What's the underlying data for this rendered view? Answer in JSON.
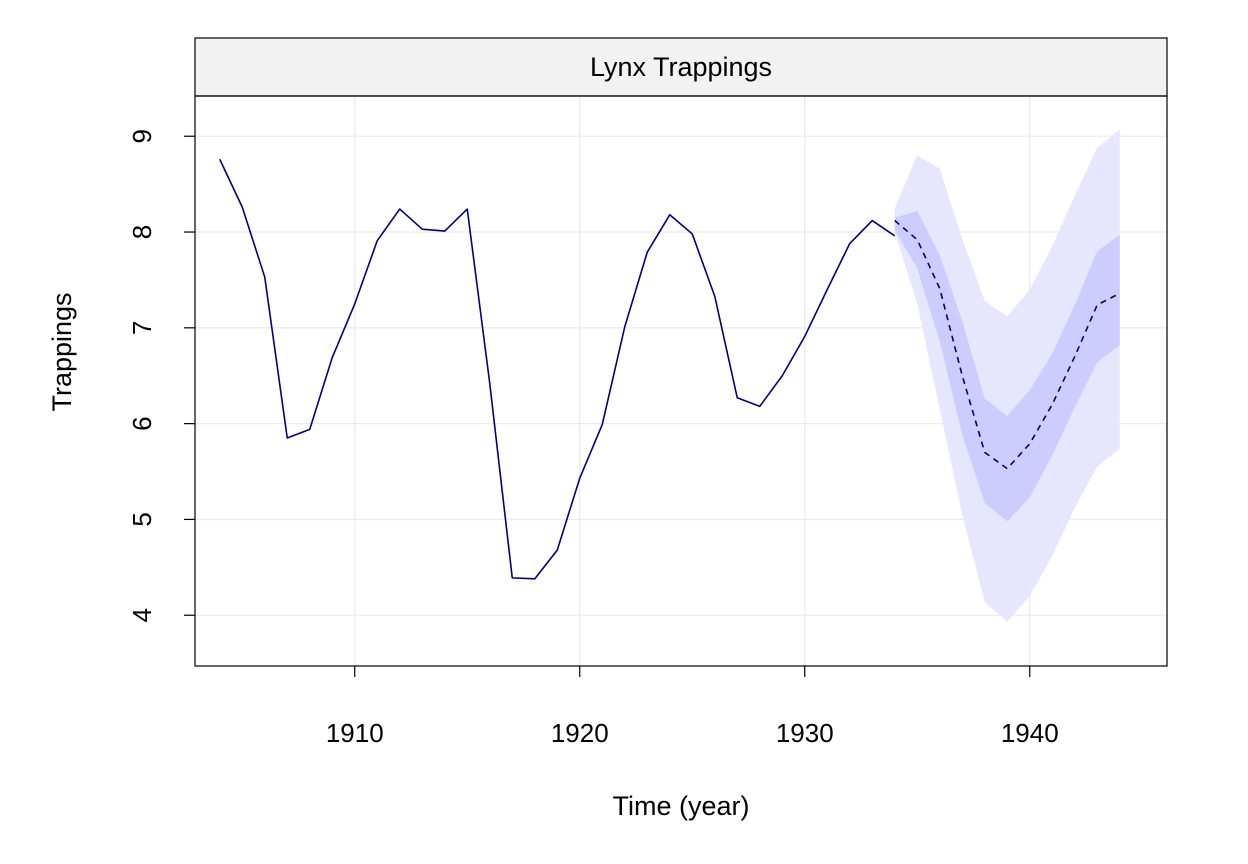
{
  "chart_data": {
    "type": "line",
    "title": "Lynx Trappings",
    "xlabel": "Time (year)",
    "ylabel": "Trappings",
    "xlim": [
      1902.9,
      1946.1
    ],
    "ylim": [
      3.47,
      9.42
    ],
    "x_ticks": [
      "1910",
      "1920",
      "1930",
      "1940"
    ],
    "y_ticks": [
      "4",
      "5",
      "6",
      "7",
      "8",
      "9"
    ],
    "grid": true,
    "legend": "none",
    "colors": {
      "observed": "#000080",
      "forecast": "#000080",
      "band_outer": "#e6e6ff",
      "band_inner": "#ccccfe",
      "strip": "#f2f2f2",
      "grid": "#ebebeb"
    },
    "series": [
      {
        "role": "observed",
        "x": [
          1904,
          1905,
          1906,
          1907,
          1908,
          1909,
          1910,
          1911,
          1912,
          1913,
          1914,
          1915,
          1916,
          1917,
          1918,
          1919,
          1920,
          1921,
          1922,
          1923,
          1924,
          1925,
          1926,
          1927,
          1928,
          1929,
          1930,
          1931,
          1932,
          1933,
          1934
        ],
        "values": [
          8.76,
          8.26,
          7.53,
          5.85,
          5.94,
          6.69,
          7.25,
          7.91,
          8.24,
          8.03,
          8.01,
          8.24,
          6.42,
          4.39,
          4.38,
          4.68,
          5.43,
          5.99,
          7.01,
          7.79,
          8.18,
          7.98,
          7.33,
          6.27,
          6.18,
          6.5,
          6.91,
          7.4,
          7.88,
          8.12,
          7.96
        ]
      },
      {
        "role": "forecast",
        "x": [
          1934,
          1935,
          1936,
          1937,
          1938,
          1939,
          1940,
          1941,
          1942,
          1943,
          1944
        ],
        "values": [
          8.12,
          7.92,
          7.41,
          6.5,
          5.7,
          5.53,
          5.79,
          6.2,
          6.7,
          7.24,
          7.36
        ],
        "lo80": [
          8.02,
          7.62,
          6.86,
          5.88,
          5.17,
          4.98,
          5.23,
          5.67,
          6.17,
          6.64,
          6.82
        ],
        "hi80": [
          8.15,
          8.22,
          7.76,
          7.07,
          6.26,
          6.08,
          6.35,
          6.73,
          7.24,
          7.8,
          7.97
        ],
        "lo95": [
          8.0,
          7.25,
          6.15,
          5.05,
          4.14,
          3.93,
          4.2,
          4.62,
          5.12,
          5.55,
          5.74
        ],
        "hi95": [
          8.25,
          8.8,
          8.66,
          7.93,
          7.28,
          7.12,
          7.4,
          7.85,
          8.38,
          8.88,
          9.07
        ]
      }
    ]
  }
}
